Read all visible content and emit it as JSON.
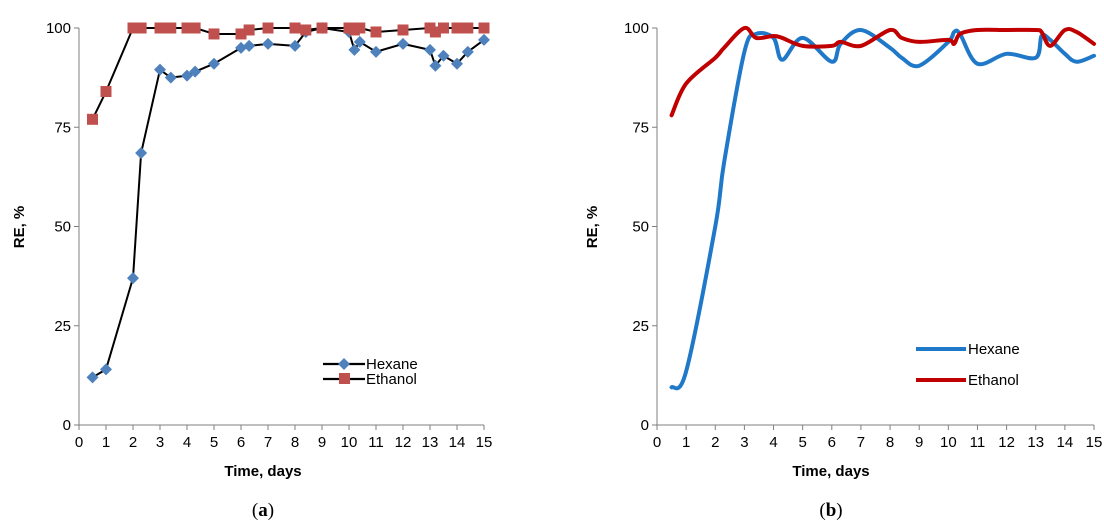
{
  "colors": {
    "hexane_marker": "#4f81bd",
    "ethanol_marker": "#c0504d",
    "hexane_line_b": "#1f78c8",
    "ethanol_line_b": "#c00000",
    "connector": "#000000"
  },
  "panels": [
    {
      "label_prefix": "(",
      "label_letter": "a",
      "label_suffix": ")",
      "xlabel": "Time, days",
      "ylabel": "RE, %"
    },
    {
      "label_prefix": "(",
      "label_letter": "b",
      "label_suffix": ")",
      "xlabel": "Time, days",
      "ylabel": "RE, %"
    }
  ],
  "chart_data": [
    {
      "type": "line",
      "style": "black connector line with markers",
      "xlabel": "Time, days",
      "ylabel": "RE, %",
      "xlim": [
        0,
        15
      ],
      "ylim": [
        0,
        100
      ],
      "x_ticks": [
        0,
        1,
        2,
        3,
        4,
        5,
        6,
        7,
        8,
        9,
        10,
        11,
        12,
        13,
        14,
        15
      ],
      "y_ticks": [
        0,
        25,
        50,
        75,
        100
      ],
      "grid": false,
      "legend_position": "bottom-right",
      "series": [
        {
          "name": "Hexane",
          "marker": "diamond",
          "x": [
            0.5,
            1,
            2,
            2.3,
            3,
            3.4,
            4,
            4.3,
            5,
            6,
            6.3,
            7,
            8,
            8.4,
            9,
            10,
            10.2,
            10.4,
            11,
            12,
            13,
            13.2,
            13.5,
            14,
            14.4,
            15
          ],
          "y": [
            12,
            14,
            37,
            68.5,
            89.5,
            87.5,
            88,
            89,
            91,
            95,
            95.5,
            96,
            95.5,
            99,
            100,
            99,
            94.5,
            96.5,
            94,
            96,
            94.5,
            90.5,
            93,
            91,
            94,
            97
          ]
        },
        {
          "name": "Ethanol",
          "marker": "square",
          "x": [
            0.5,
            1,
            2,
            2.3,
            3,
            3.4,
            4,
            4.3,
            5,
            6,
            6.3,
            7,
            8,
            8.4,
            9,
            10,
            10.2,
            10.4,
            11,
            12,
            13,
            13.2,
            13.5,
            14,
            14.4,
            15
          ],
          "y": [
            77,
            84,
            100,
            100,
            100,
            100,
            100,
            100,
            98.5,
            98.5,
            99.5,
            100,
            100,
            99.5,
            100,
            100,
            99.5,
            100,
            99,
            99.5,
            100,
            99,
            100,
            100,
            100,
            100
          ]
        }
      ]
    },
    {
      "type": "line",
      "style": "smoothed lines without markers",
      "xlabel": "Time, days",
      "ylabel": "RE, %",
      "xlim": [
        0,
        15
      ],
      "ylim": [
        0,
        100
      ],
      "x_ticks": [
        0,
        1,
        2,
        3,
        4,
        5,
        6,
        7,
        8,
        9,
        10,
        11,
        12,
        13,
        14,
        15
      ],
      "y_ticks": [
        0,
        25,
        50,
        75,
        100
      ],
      "grid": false,
      "legend_position": "bottom-right",
      "series": [
        {
          "name": "Hexane",
          "x": [
            0.5,
            1,
            2,
            2.3,
            3,
            3.4,
            4,
            4.3,
            5,
            6,
            6.3,
            7,
            8,
            8.4,
            9,
            10,
            10.2,
            10.4,
            11,
            12,
            13,
            13.2,
            13.5,
            14,
            14.4,
            15
          ],
          "y": [
            9.5,
            13.5,
            50,
            66,
            94,
            98.5,
            97.5,
            92,
            97.5,
            91.5,
            96,
            99.5,
            95,
            92.5,
            90.5,
            96.5,
            99,
            98.5,
            91,
            93.5,
            92.5,
            98,
            97,
            93.5,
            91.5,
            93
          ]
        },
        {
          "name": "Ethanol",
          "x": [
            0.5,
            1,
            2,
            2.3,
            3,
            3.4,
            4,
            4.3,
            5,
            6,
            6.3,
            7,
            8,
            8.4,
            9,
            10,
            10.2,
            10.4,
            11,
            12,
            13,
            13.2,
            13.5,
            14,
            14.4,
            15
          ],
          "y": [
            78,
            86,
            92.5,
            95,
            100,
            97.5,
            98,
            97.5,
            95.5,
            95.5,
            96.5,
            95.5,
            99.5,
            97.5,
            96.5,
            97,
            96,
            98.5,
            99.5,
            99.5,
            99.5,
            99,
            95.5,
            99.5,
            99,
            96
          ]
        }
      ]
    }
  ]
}
